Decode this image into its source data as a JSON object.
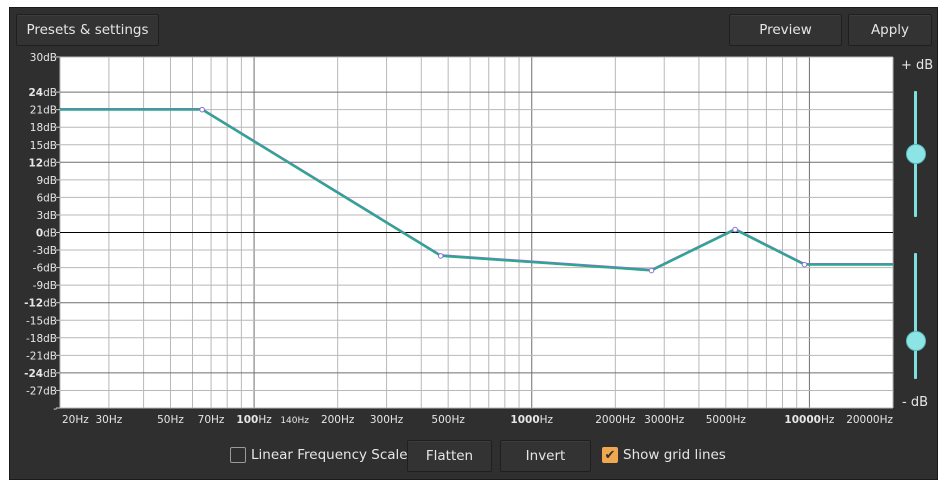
{
  "toolbar": {
    "presets_label": "Presets & settings",
    "preview_label": "Preview",
    "apply_label": "Apply"
  },
  "graph": {
    "db_ticks": [
      {
        "label": "30dB",
        "value": 30,
        "bold": ""
      },
      {
        "label": "dB",
        "value": 24,
        "bold": "24"
      },
      {
        "label": "21dB",
        "value": 21,
        "bold": ""
      },
      {
        "label": "18dB",
        "value": 18,
        "bold": ""
      },
      {
        "label": "15dB",
        "value": 15,
        "bold": ""
      },
      {
        "label": "dB",
        "value": 12,
        "bold": "12"
      },
      {
        "label": "9dB",
        "value": 9,
        "bold": ""
      },
      {
        "label": "6dB",
        "value": 6,
        "bold": ""
      },
      {
        "label": "3dB",
        "value": 3,
        "bold": ""
      },
      {
        "label": "dB",
        "value": 0,
        "bold": "0"
      },
      {
        "label": "-3dB",
        "value": -3,
        "bold": ""
      },
      {
        "label": "-6dB",
        "value": -6,
        "bold": ""
      },
      {
        "label": "-9dB",
        "value": -9,
        "bold": ""
      },
      {
        "label": "dB",
        "value": -12,
        "bold": "-12"
      },
      {
        "label": "-15dB",
        "value": -15,
        "bold": ""
      },
      {
        "label": "-18dB",
        "value": -18,
        "bold": ""
      },
      {
        "label": "-21dB",
        "value": -21,
        "bold": ""
      },
      {
        "label": "dB",
        "value": -24,
        "bold": "-24"
      },
      {
        "label": "-27dB",
        "value": -27,
        "bold": ""
      },
      {
        "label": "-",
        "value": -30,
        "bold": ""
      }
    ],
    "hz_ticks": [
      {
        "label": "20Hz",
        "value": 20,
        "bold": ""
      },
      {
        "label": "30Hz",
        "value": 30,
        "bold": ""
      },
      {
        "label": "50Hz",
        "value": 50,
        "bold": ""
      },
      {
        "label": "70Hz",
        "value": 70,
        "bold": ""
      },
      {
        "label": "Hz",
        "value": 100,
        "bold": "100"
      },
      {
        "label": "140Hz",
        "value": 140,
        "bold": "",
        "small": true
      },
      {
        "label": "200Hz",
        "value": 200,
        "bold": ""
      },
      {
        "label": "300Hz",
        "value": 300,
        "bold": ""
      },
      {
        "label": "500Hz",
        "value": 500,
        "bold": ""
      },
      {
        "label": "Hz",
        "value": 1000,
        "bold": "1000"
      },
      {
        "label": "2000Hz",
        "value": 2000,
        "bold": ""
      },
      {
        "label": "3000Hz",
        "value": 3000,
        "bold": ""
      },
      {
        "label": "5000Hz",
        "value": 5000,
        "bold": ""
      },
      {
        "label": "Hz",
        "value": 10000,
        "bold": "10000"
      },
      {
        "label": "20000Hz",
        "value": 20000,
        "bold": ""
      }
    ],
    "x_range": [
      20,
      20000
    ],
    "y_range": [
      -30,
      30
    ],
    "log_x": true,
    "grid_visible": true,
    "curve_color": "#2aa88a",
    "curve_shadow_color": "#8a6fd8",
    "curve_points": [
      {
        "hz": 20,
        "db": 21
      },
      {
        "hz": 65,
        "db": 21
      },
      {
        "hz": 470,
        "db": -4
      },
      {
        "hz": 2700,
        "db": -6.5
      },
      {
        "hz": 5400,
        "db": 0.5
      },
      {
        "hz": 9600,
        "db": -5.5
      },
      {
        "hz": 20000,
        "db": -5.5
      }
    ]
  },
  "side_scale": {
    "plus_label": "+ dB",
    "minus_label": "- dB",
    "upper_slider_value": 0.5,
    "lower_slider_value": 0.3,
    "slider_color": "#8de4e4"
  },
  "bottom": {
    "linear_label": "Linear Frequency Scale",
    "linear_checked": false,
    "flatten_label": "Flatten",
    "invert_label": "Invert",
    "grid_label": "Show grid lines",
    "grid_checked": true,
    "check_glyph": "✔"
  }
}
